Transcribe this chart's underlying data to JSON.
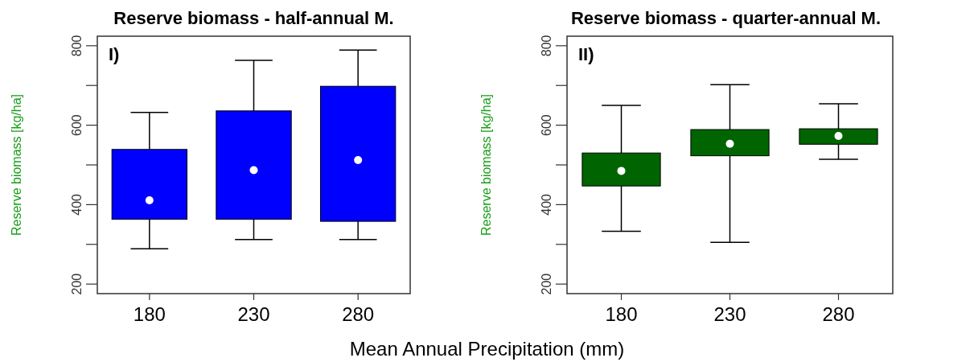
{
  "chart_data": [
    {
      "type": "box",
      "title": "Reserve biomass - half-annual M.",
      "ylabel": "Reserve biomass [kg/ha]",
      "xlabel": "Mean Annual Precipitation (mm)",
      "categories": [
        "180",
        "230",
        "280"
      ],
      "ylim": [
        176,
        824
      ],
      "yticks": [
        200,
        {
          "value": 300,
          "label": null
        },
        400,
        {
          "value": 500,
          "label": null
        },
        600,
        {
          "value": 700,
          "label": null
        },
        800
      ],
      "annotations": [
        "I)"
      ],
      "series": [
        {
          "color": "#0000ff",
          "boxes": [
            {
              "low": 289,
              "q1": 363,
              "median": 411,
              "q3": 539,
              "high": 632
            },
            {
              "low": 312,
              "q1": 363,
              "median": 487,
              "q3": 636,
              "high": 763
            },
            {
              "low": 312,
              "q1": 358,
              "median": 512,
              "q3": 698,
              "high": 789
            }
          ]
        }
      ]
    },
    {
      "type": "box",
      "title": "Reserve biomass - quarter-annual M.",
      "ylabel": "Reserve biomass [kg/ha]",
      "categories": [
        "180",
        "230",
        "280"
      ],
      "ylim": [
        176,
        824
      ],
      "yticks": [
        200,
        {
          "value": 300,
          "label": null
        },
        400,
        {
          "value": 500,
          "label": null
        },
        600,
        {
          "value": 700,
          "label": null
        },
        800
      ],
      "annotations": [
        "II)"
      ],
      "series": [
        {
          "color": "#006400",
          "boxes": [
            {
              "low": 333,
              "q1": 447,
              "median": 485,
              "q3": 530,
              "high": 650
            },
            {
              "low": 305,
              "q1": 523,
              "median": 553,
              "q3": 589,
              "high": 702
            },
            {
              "low": 514,
              "q1": 552,
              "median": 573,
              "q3": 591,
              "high": 654
            }
          ]
        }
      ]
    }
  ]
}
